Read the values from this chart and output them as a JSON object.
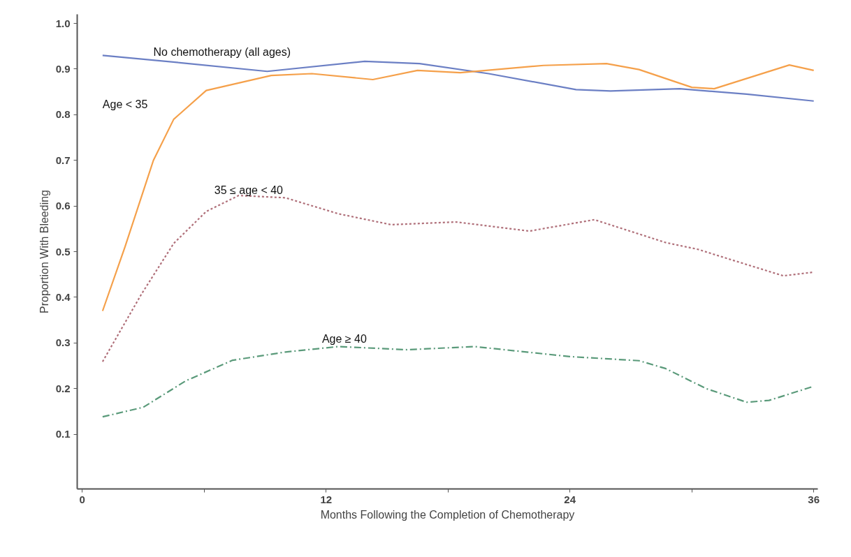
{
  "chart_data": {
    "type": "line",
    "xlabel": "Months Following the Completion of Chemotherapy",
    "ylabel": "Proportion With Bleeding",
    "xlim": [
      -0.25,
      36.2
    ],
    "ylim": [
      -0.02,
      1.02
    ],
    "xticks": [
      0,
      {
        "value": 6,
        "label": null
      },
      12,
      {
        "value": 18,
        "label": null
      },
      24,
      {
        "value": 30,
        "label": null
      },
      36
    ],
    "yticks": [
      0.1,
      0.2,
      0.3,
      0.4,
      0.5,
      0.6,
      0.7,
      0.8,
      0.9,
      {
        "value": 1.0,
        "label": "1.0"
      }
    ],
    "grid": false,
    "legend": false,
    "marker": "none",
    "series": [
      {
        "name": "No chemotherapy (all ages)",
        "color": "#6b7fc4",
        "line_style": "solid",
        "x": [
          1,
          4.8,
          9.1,
          13.9,
          16.6,
          20,
          24.3,
          26,
          29.4,
          32.7,
          36
        ],
        "values": [
          0.93,
          0.914,
          0.895,
          0.917,
          0.912,
          0.89,
          0.855,
          0.852,
          0.857,
          0.845,
          0.83
        ]
      },
      {
        "name": "Age < 35",
        "color": "#f5a04a",
        "line_style": "solid",
        "x": [
          1,
          2.1,
          3.5,
          4.5,
          6.1,
          9.3,
          11.3,
          14.3,
          16.5,
          18.6,
          22.7,
          25.8,
          27.4,
          30,
          31.1,
          34.8,
          36
        ],
        "values": [
          0.37,
          0.51,
          0.7,
          0.79,
          0.853,
          0.886,
          0.89,
          0.877,
          0.897,
          0.892,
          0.908,
          0.912,
          0.899,
          0.86,
          0.857,
          0.909,
          0.897
        ]
      },
      {
        "name": "35 ≤ age < 40",
        "color": "#b0707a",
        "line_style": "dotted",
        "x": [
          1,
          2.9,
          4.5,
          6.1,
          7.7,
          10,
          12.6,
          15.2,
          18.4,
          22,
          25.2,
          28.7,
          30.3,
          32.1,
          34.5,
          36
        ],
        "values": [
          0.259,
          0.406,
          0.518,
          0.588,
          0.623,
          0.618,
          0.583,
          0.559,
          0.565,
          0.545,
          0.57,
          0.52,
          0.505,
          0.48,
          0.447,
          0.455
        ]
      },
      {
        "name": "Age ≥ 40",
        "color": "#5a9a7a",
        "line_style": "dashed",
        "x": [
          1,
          3,
          5.1,
          7.4,
          10,
          12.6,
          16,
          19.3,
          24,
          27.4,
          28.7,
          30.7,
          32.7,
          33.8,
          36
        ],
        "values": [
          0.138,
          0.159,
          0.217,
          0.262,
          0.28,
          0.292,
          0.285,
          0.292,
          0.27,
          0.261,
          0.244,
          0.2,
          0.17,
          0.174,
          0.205
        ]
      }
    ]
  }
}
